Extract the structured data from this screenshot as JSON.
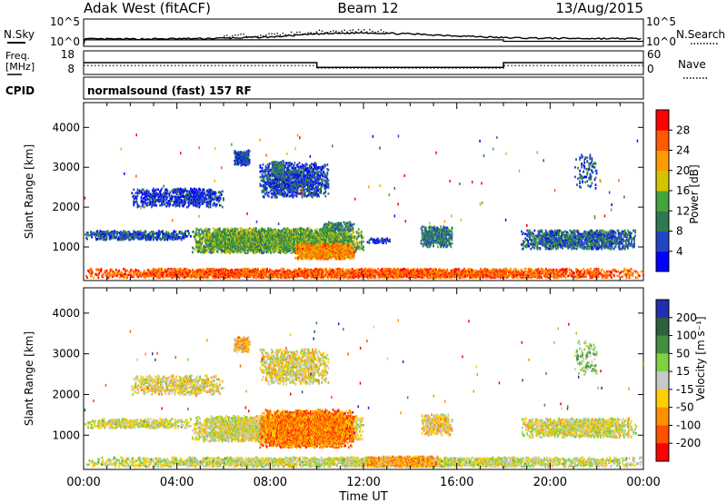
{
  "header": {
    "station": "Adak West (fitACF)",
    "beam": "Beam 12",
    "date": "13/Aug/2015",
    "program": "normalsound (fast) 157 RF"
  },
  "side_labels": {
    "nsky": "N.Sky",
    "nsearch": "N.Search",
    "freq1": "Freq.",
    "freq2": "[MHz]",
    "nave": "Nave",
    "cpid": "CPID"
  },
  "chart_data": [
    {
      "type": "line",
      "panel": "noise",
      "yticks_left": [
        "10^5",
        "10^0"
      ],
      "yticks_right": [
        "10^5",
        "10^0"
      ],
      "x_hours": [
        0,
        2,
        4,
        6,
        8,
        10,
        12,
        14,
        16,
        18,
        20,
        22,
        24
      ],
      "nsky_level": [
        0.25,
        0.25,
        0.26,
        0.28,
        0.33,
        0.45,
        0.5,
        0.45,
        0.38,
        0.3,
        0.28,
        0.27,
        0.26
      ],
      "nsearch_level": [
        0.2,
        0.2,
        0.2,
        0.2,
        0.2,
        0.2,
        0.2,
        0.2,
        0.2,
        0.18,
        0.18,
        0.18,
        0.18
      ],
      "nsearch_step_hours": [
        0.0,
        18.0
      ]
    },
    {
      "type": "line",
      "panel": "frequency",
      "yticks_left": [
        "18",
        "8"
      ],
      "yticks_right": [
        "60",
        "0"
      ],
      "ylim_left": [
        8,
        18
      ],
      "ylim_right": [
        0,
        60
      ],
      "freq_steps": [
        {
          "from": 0,
          "to": 10,
          "value": 13.0
        },
        {
          "from": 10,
          "to": 18,
          "value": 10.8
        },
        {
          "from": 18,
          "to": 24,
          "value": 13.0
        }
      ],
      "nave_steps": [
        {
          "from": 0,
          "to": 10,
          "value": 22
        },
        {
          "from": 10,
          "to": 18,
          "value": 15
        },
        {
          "from": 18,
          "to": 24,
          "value": 22
        }
      ]
    },
    {
      "type": "heatmap",
      "panel": "power",
      "ylabel": "Slant Range [km]",
      "ylim": [
        180,
        4600
      ],
      "yticks": [
        1000,
        2000,
        3000,
        4000
      ],
      "colorbar_label": "Power [dB]",
      "colorbar_ticks": [
        4,
        8,
        12,
        16,
        20,
        24,
        28
      ],
      "colorbar_colors": [
        "#0000ff",
        "#2244c8",
        "#2e7a50",
        "#44a43c",
        "#d4c400",
        "#ff9a00",
        "#ff5a00",
        "#ff0000"
      ],
      "clusters": [
        {
          "t0": 0.0,
          "t1": 24.0,
          "r0": 180,
          "r1": 430,
          "v": 0.8,
          "d": 0.6
        },
        {
          "t0": 0.0,
          "t1": 4.6,
          "r0": 1130,
          "r1": 1380,
          "v": 0.22,
          "d": 0.45
        },
        {
          "t0": 4.6,
          "t1": 12.0,
          "r0": 800,
          "r1": 1450,
          "v": 0.42,
          "d": 0.7
        },
        {
          "t0": 9.0,
          "t1": 11.6,
          "r0": 650,
          "r1": 1050,
          "v": 0.72,
          "d": 0.85
        },
        {
          "t0": 10.2,
          "t1": 11.6,
          "r0": 1350,
          "r1": 1600,
          "v": 0.35,
          "d": 0.5
        },
        {
          "t0": 2.0,
          "t1": 6.0,
          "r0": 1950,
          "r1": 2450,
          "v": 0.15,
          "d": 0.4
        },
        {
          "t0": 6.4,
          "t1": 7.1,
          "r0": 3000,
          "r1": 3400,
          "v": 0.2,
          "d": 0.7
        },
        {
          "t0": 7.5,
          "t1": 10.5,
          "r0": 2200,
          "r1": 3100,
          "v": 0.2,
          "d": 0.45
        },
        {
          "t0": 8.0,
          "t1": 8.6,
          "r0": 2800,
          "r1": 3150,
          "v": 0.3,
          "d": 0.6
        },
        {
          "t0": 12.1,
          "t1": 13.2,
          "r0": 1050,
          "r1": 1200,
          "v": 0.18,
          "d": 0.4
        },
        {
          "t0": 14.4,
          "t1": 15.8,
          "r0": 950,
          "r1": 1500,
          "v": 0.3,
          "d": 0.55
        },
        {
          "t0": 18.7,
          "t1": 23.7,
          "r0": 900,
          "r1": 1400,
          "v": 0.25,
          "d": 0.5
        },
        {
          "t0": 21.0,
          "t1": 22.0,
          "r0": 2400,
          "r1": 3300,
          "v": 0.2,
          "d": 0.15
        }
      ]
    },
    {
      "type": "heatmap",
      "panel": "velocity",
      "ylabel": "Slant Range [km]",
      "xlabel": "Time UT",
      "ylim": [
        180,
        4600
      ],
      "yticks": [
        1000,
        2000,
        3000,
        4000
      ],
      "xticks": [
        "00:00",
        "04:00",
        "08:00",
        "12:00",
        "16:00",
        "20:00",
        "00:00"
      ],
      "colorbar_label": "Velocity [m s⁻¹]",
      "colorbar_ticks": [
        200,
        100,
        50,
        15,
        -15,
        -50,
        -100,
        -200
      ],
      "colorbar_colors": [
        "#2030b0",
        "#2e6040",
        "#409040",
        "#80d040",
        "#c8c8c8",
        "#ffd000",
        "#ff9000",
        "#ff5000",
        "#ff0000"
      ],
      "clusters": [
        {
          "t0": 0.0,
          "t1": 24.0,
          "r0": 180,
          "r1": 430,
          "v": 0.5,
          "d": 0.5
        },
        {
          "t0": 0.0,
          "t1": 4.6,
          "r0": 1130,
          "r1": 1380,
          "v": 0.5,
          "d": 0.45
        },
        {
          "t0": 4.6,
          "t1": 12.0,
          "r0": 800,
          "r1": 1450,
          "v": 0.52,
          "d": 0.7
        },
        {
          "t0": 7.5,
          "t1": 11.6,
          "r0": 650,
          "r1": 1600,
          "v": 0.75,
          "d": 0.85
        },
        {
          "t0": 2.0,
          "t1": 6.0,
          "r0": 1950,
          "r1": 2450,
          "v": 0.55,
          "d": 0.35
        },
        {
          "t0": 6.4,
          "t1": 7.1,
          "r0": 3000,
          "r1": 3400,
          "v": 0.65,
          "d": 0.7
        },
        {
          "t0": 7.5,
          "t1": 10.5,
          "r0": 2200,
          "r1": 3100,
          "v": 0.55,
          "d": 0.4
        },
        {
          "t0": 12.1,
          "t1": 15.2,
          "r0": 180,
          "r1": 450,
          "v": 0.68,
          "d": 0.75
        },
        {
          "t0": 14.4,
          "t1": 15.8,
          "r0": 950,
          "r1": 1500,
          "v": 0.6,
          "d": 0.5
        },
        {
          "t0": 18.7,
          "t1": 23.7,
          "r0": 900,
          "r1": 1400,
          "v": 0.52,
          "d": 0.5
        },
        {
          "t0": 21.0,
          "t1": 22.0,
          "r0": 2400,
          "r1": 3300,
          "v": 0.4,
          "d": 0.15
        }
      ]
    }
  ]
}
